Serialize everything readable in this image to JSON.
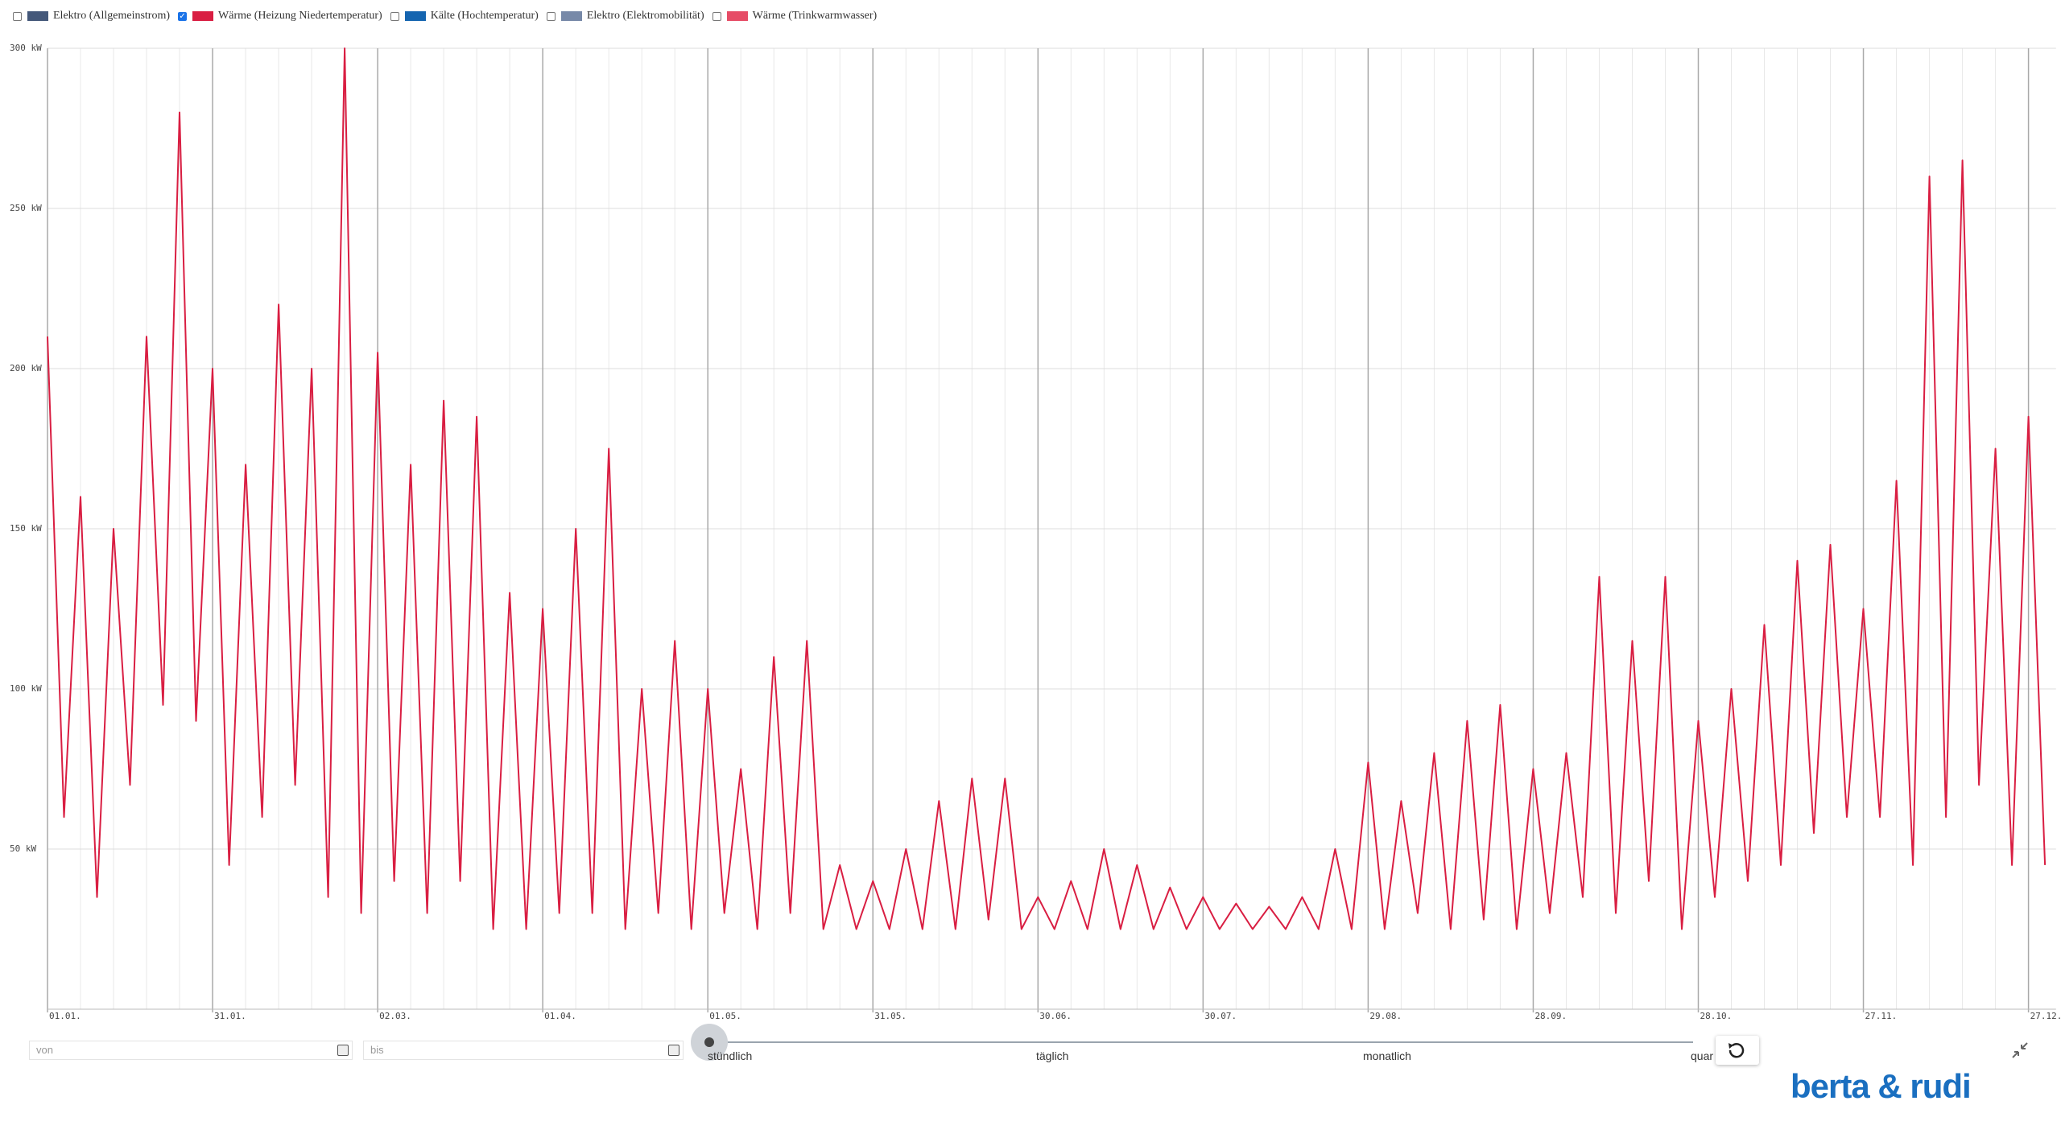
{
  "chart_data": {
    "type": "line",
    "series": [
      {
        "name": "Elektro (Allgemeinstrom)",
        "color": "#44587a",
        "checked": false
      },
      {
        "name": "Wärme (Heizung Niedertemperatur)",
        "color": "#d91e42",
        "checked": true,
        "values": [
          210,
          60,
          160,
          35,
          150,
          70,
          210,
          95,
          280,
          90,
          200,
          45,
          170,
          60,
          220,
          70,
          200,
          35,
          300,
          30,
          205,
          40,
          170,
          30,
          190,
          40,
          185,
          25,
          130,
          25,
          125,
          30,
          150,
          30,
          175,
          25,
          100,
          30,
          115,
          25,
          100,
          30,
          75,
          25,
          110,
          30,
          115,
          25,
          45,
          25,
          40,
          25,
          50,
          25,
          65,
          25,
          72,
          28,
          72,
          25,
          35,
          25,
          40,
          25,
          50,
          25,
          45,
          25,
          38,
          25,
          35,
          25,
          33,
          25,
          32,
          25,
          35,
          25,
          50,
          25,
          77,
          25,
          65,
          30,
          80,
          25,
          90,
          28,
          95,
          25,
          75,
          30,
          80,
          35,
          135,
          30,
          115,
          40,
          135,
          25,
          90,
          35,
          100,
          40,
          120,
          45,
          140,
          55,
          145,
          60,
          125,
          60,
          165,
          45,
          260,
          60,
          265,
          70,
          175,
          45,
          185,
          45
        ]
      },
      {
        "name": "Kälte (Hochtemperatur)",
        "color": "#1565b0",
        "checked": false
      },
      {
        "name": "Elektro (Elektromobilität)",
        "color": "#7789a8",
        "checked": false
      },
      {
        "name": "Wärme (Trinkwarmwasser)",
        "color": "#e64c66",
        "checked": false
      }
    ],
    "categories": [
      "01.01.",
      null,
      null,
      null,
      null,
      null,
      null,
      null,
      null,
      null,
      "31.01.",
      null,
      null,
      null,
      null,
      null,
      null,
      null,
      null,
      null,
      "02.03.",
      null,
      null,
      null,
      null,
      null,
      null,
      null,
      null,
      null,
      "01.04.",
      null,
      null,
      null,
      null,
      null,
      null,
      null,
      null,
      null,
      "01.05.",
      null,
      null,
      null,
      null,
      null,
      null,
      null,
      null,
      null,
      "31.05.",
      null,
      null,
      null,
      null,
      null,
      null,
      null,
      null,
      null,
      "30.06.",
      null,
      null,
      null,
      null,
      null,
      null,
      null,
      null,
      null,
      "30.07.",
      null,
      null,
      null,
      null,
      null,
      null,
      null,
      null,
      null,
      "29.08.",
      null,
      null,
      null,
      null,
      null,
      null,
      null,
      null,
      null,
      "28.09.",
      null,
      null,
      null,
      null,
      null,
      null,
      null,
      null,
      null,
      "28.10.",
      null,
      null,
      null,
      null,
      null,
      null,
      null,
      null,
      null,
      "27.11.",
      null,
      null,
      null,
      null,
      null,
      null,
      null,
      null,
      null,
      "27.12.",
      null
    ],
    "ylim": [
      0,
      300
    ],
    "yticks": [
      {
        "value": 50,
        "label": "50 kW"
      },
      {
        "value": 100,
        "label": "100 kW"
      },
      {
        "value": 150,
        "label": "150 kW"
      },
      {
        "value": 200,
        "label": "200 kW"
      },
      {
        "value": 250,
        "label": "250 kW"
      },
      {
        "value": 300,
        "label": "300 kW"
      }
    ],
    "grid": true
  },
  "controls": {
    "from_placeholder": "von",
    "to_placeholder": "bis",
    "resolution": [
      "stündlich",
      "täglich",
      "monatlich",
      "quar"
    ]
  },
  "brand": "berta & rudi"
}
